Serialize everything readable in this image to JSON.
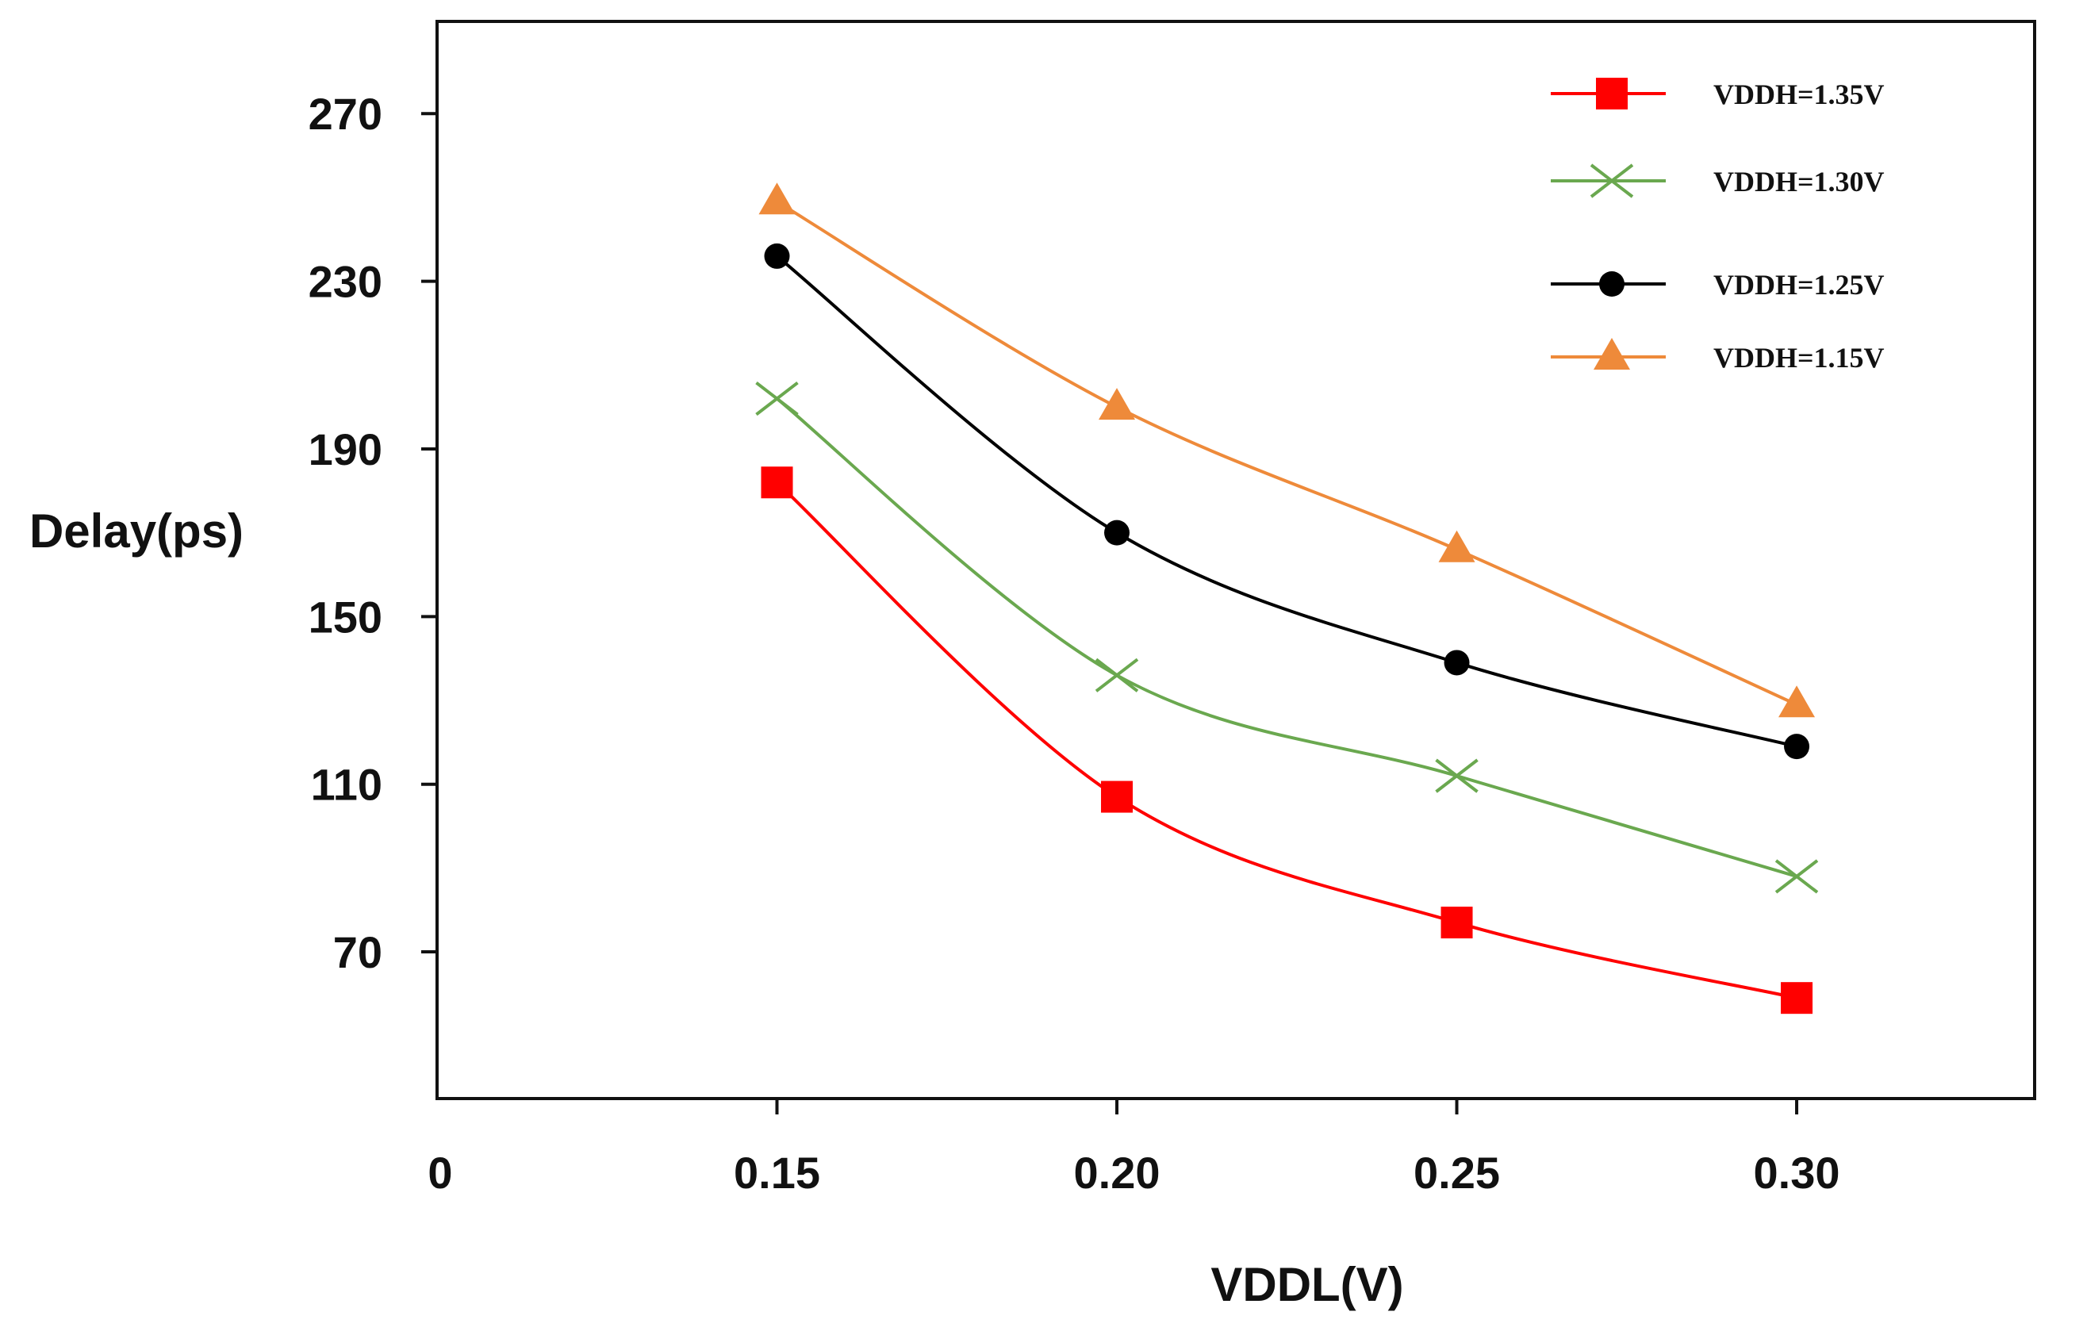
{
  "chart_data": {
    "type": "line",
    "xlabel": "VDDL(V)",
    "ylabel": "Delay(ps)",
    "x_origin_label": "0",
    "x_ticks": [
      0.15,
      0.2,
      0.25,
      0.3
    ],
    "x_tick_labels": [
      "0.15",
      "0.20",
      "0.25",
      "0.30"
    ],
    "y_ticks": [
      70,
      110,
      150,
      190,
      230,
      270
    ],
    "y_tick_labels": [
      "70",
      "110",
      "150",
      "190",
      "230",
      "270"
    ],
    "xlim": [
      0.1,
      0.335
    ],
    "ylim": [
      35,
      292
    ],
    "grid": false,
    "legend_position": "top-right",
    "series": [
      {
        "name": "VDDH=1.35V",
        "color": "#ff0000",
        "marker": "square",
        "x": [
          0.15,
          0.2,
          0.25,
          0.3
        ],
        "y": [
          182,
          107,
          77,
          59
        ]
      },
      {
        "name": "VDDH=1.30V",
        "color": "#6aa84f",
        "marker": "x",
        "x": [
          0.15,
          0.2,
          0.25,
          0.3
        ],
        "y": [
          202,
          136,
          112,
          88
        ]
      },
      {
        "name": "VDDH=1.25V",
        "color": "#000000",
        "marker": "circle",
        "x": [
          0.15,
          0.2,
          0.25,
          0.3
        ],
        "y": [
          236,
          170,
          139,
          119
        ]
      },
      {
        "name": "VDDH=1.15V",
        "color": "#ee8a3a",
        "marker": "triangle",
        "x": [
          0.15,
          0.2,
          0.25,
          0.3
        ],
        "y": [
          249,
          200,
          166,
          129
        ]
      }
    ]
  }
}
